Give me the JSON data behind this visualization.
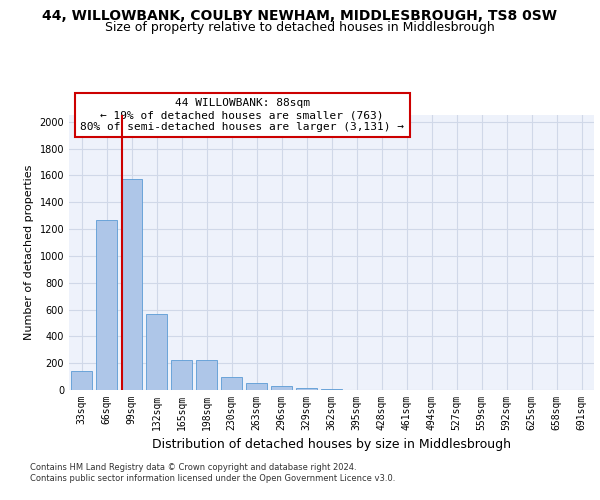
{
  "title": "44, WILLOWBANK, COULBY NEWHAM, MIDDLESBROUGH, TS8 0SW",
  "subtitle": "Size of property relative to detached houses in Middlesbrough",
  "xlabel": "Distribution of detached houses by size in Middlesbrough",
  "ylabel": "Number of detached properties",
  "categories": [
    "33sqm",
    "66sqm",
    "99sqm",
    "132sqm",
    "165sqm",
    "198sqm",
    "230sqm",
    "263sqm",
    "296sqm",
    "329sqm",
    "362sqm",
    "395sqm",
    "428sqm",
    "461sqm",
    "494sqm",
    "527sqm",
    "559sqm",
    "592sqm",
    "625sqm",
    "658sqm",
    "691sqm"
  ],
  "values": [
    140,
    1265,
    1570,
    565,
    220,
    220,
    95,
    50,
    30,
    18,
    10,
    0,
    0,
    0,
    0,
    0,
    0,
    0,
    0,
    0,
    0
  ],
  "bar_color": "#aec6e8",
  "bar_edgecolor": "#5b9bd5",
  "grid_color": "#d0d8e8",
  "bg_color": "#eef2fb",
  "vline_color": "#cc0000",
  "vline_x_index": 1.6,
  "annotation_text": "44 WILLOWBANK: 88sqm\n← 19% of detached houses are smaller (763)\n80% of semi-detached houses are larger (3,131) →",
  "annotation_box_facecolor": "#ffffff",
  "annotation_box_edgecolor": "#cc0000",
  "ylim": [
    0,
    2050
  ],
  "yticks": [
    0,
    200,
    400,
    600,
    800,
    1000,
    1200,
    1400,
    1600,
    1800,
    2000
  ],
  "footer_line1": "Contains HM Land Registry data © Crown copyright and database right 2024.",
  "footer_line2": "Contains public sector information licensed under the Open Government Licence v3.0.",
  "title_fontsize": 10,
  "subtitle_fontsize": 9,
  "ylabel_fontsize": 8,
  "xlabel_fontsize": 9,
  "tick_fontsize": 7,
  "annotation_fontsize": 8,
  "footer_fontsize": 6
}
